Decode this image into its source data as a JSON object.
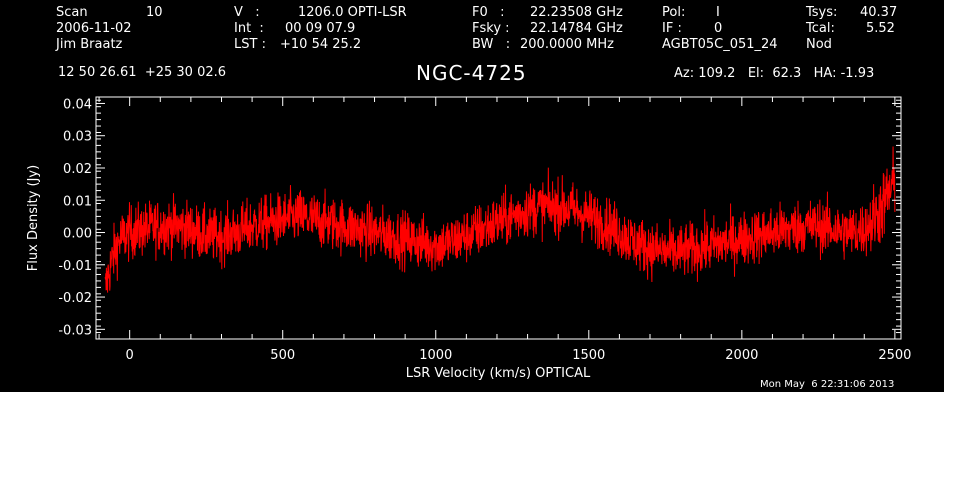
{
  "header": {
    "scan_label": "Scan",
    "scan_value": "10",
    "date": "2006-11-02",
    "observer": "Jim Braatz",
    "v_label": "V   :",
    "v_value": "1206.0 OPTI-LSR",
    "int_label": "Int  :",
    "int_value": "00 09 07.9",
    "lst_label": "LST :",
    "lst_value": "+10 54 25.2",
    "f0_label": "F0   :",
    "f0_value": "22.23508 GHz",
    "fsky_label": "Fsky :",
    "fsky_value": "22.14784 GHz",
    "bw_label": "BW   :",
    "bw_value": "200.0000 MHz",
    "pol_label": "Pol:",
    "pol_value": "I",
    "if_label": "IF :",
    "if_value": "0",
    "project": "AGBT05C_051_24",
    "tsys_label": "Tsys:",
    "tsys_value": "40.37",
    "tcal_label": "Tcal:",
    "tcal_value": "5.52",
    "mode": "Nod",
    "coords": "12 50 26.61  +25 30 02.6",
    "source": "NGC-4725",
    "az_el_ha": "Az: 109.2   El:  62.3   HA: -1.93",
    "timestamp": "Mon May  6 22:31:06 2013"
  },
  "chart_data": {
    "type": "line",
    "xlabel": "LSR Velocity (km/s) OPTICAL",
    "ylabel": "Flux Density (Jy)",
    "xlim": [
      -110,
      2520
    ],
    "ylim": [
      -0.033,
      0.042
    ],
    "x_ticks": [
      "0",
      "500",
      "1000",
      "1500",
      "2000",
      "2500"
    ],
    "y_ticks": [
      "-0.03",
      "-0.02",
      "-0.01",
      "0.00",
      "0.01",
      "0.02",
      "0.03",
      "0.04"
    ],
    "series": [
      {
        "color": "#ff0000",
        "x": [
          -80,
          -70,
          -50,
          -30,
          0,
          50,
          100,
          150,
          200,
          250,
          300,
          350,
          400,
          450,
          500,
          550,
          600,
          650,
          700,
          750,
          800,
          850,
          900,
          950,
          1000,
          1050,
          1100,
          1150,
          1200,
          1250,
          1300,
          1350,
          1400,
          1450,
          1500,
          1550,
          1600,
          1650,
          1700,
          1750,
          1800,
          1850,
          1900,
          1950,
          2000,
          2050,
          2100,
          2150,
          2200,
          2250,
          2300,
          2350,
          2400,
          2430,
          2460,
          2480,
          2500
        ],
        "y": [
          -0.018,
          -0.013,
          -0.006,
          -0.002,
          0.0,
          0.001,
          0.002,
          0.002,
          0.001,
          -0.001,
          -0.001,
          0.0,
          0.002,
          0.003,
          0.004,
          0.005,
          0.004,
          0.003,
          0.002,
          0.001,
          0.0,
          -0.001,
          -0.002,
          -0.003,
          -0.004,
          -0.003,
          -0.001,
          0.001,
          0.003,
          0.005,
          0.007,
          0.008,
          0.008,
          0.007,
          0.005,
          0.003,
          0.0,
          -0.003,
          -0.005,
          -0.006,
          -0.006,
          -0.005,
          -0.004,
          -0.003,
          -0.002,
          -0.001,
          0.0,
          0.001,
          0.002,
          0.002,
          0.001,
          0.0,
          0.001,
          0.004,
          0.008,
          0.012,
          0.016
        ]
      }
    ]
  }
}
